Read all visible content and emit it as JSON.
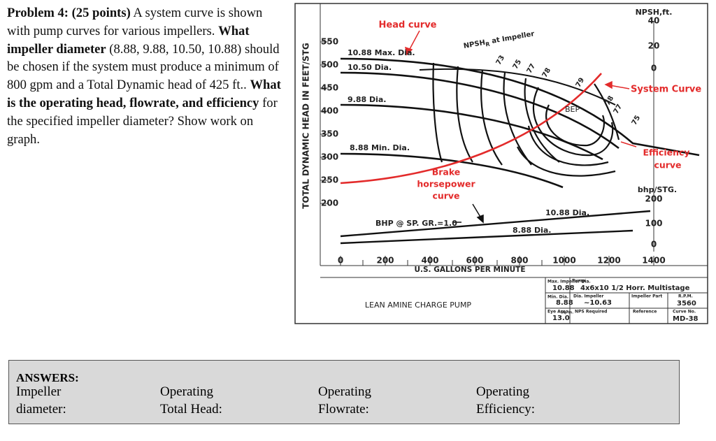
{
  "problem": {
    "segments": [
      {
        "text": "Problem 4: (25 points)",
        "bold": true
      },
      {
        "text": " A system curve is shown with pump curves for various impellers. ",
        "bold": false
      },
      {
        "text": "What impeller diameter",
        "bold": true
      },
      {
        "text": " (8.88, 9.88, 10.50, 10.88) should be chosen if the system must produce a minimum of 800 gpm and a Total Dynamic head of 425 ft.. ",
        "bold": false
      },
      {
        "text": "What is the operating head, flowrate, and efficiency",
        "bold": true
      },
      {
        "text": " for the specified impeller diameter?  Show work on graph.",
        "bold": false
      }
    ]
  },
  "figure": {
    "y_label": "TOTAL DYNAMIC HEAD IN FEET/STG",
    "y_ticks": [
      550,
      500,
      450,
      400,
      350,
      300,
      250,
      200
    ],
    "x_ticks": [
      0,
      200,
      400,
      600,
      800,
      1000,
      1200,
      1400
    ],
    "x_label": "U.S. GALLONS PER MINUTE",
    "npsh_label": "NPSH,ft.",
    "npsh_ticks": [
      40,
      20,
      0
    ],
    "bhp_label": "bhp/STG.",
    "bhp_ticks": [
      200,
      100,
      0
    ],
    "labels": {
      "head_curve": "Head curve",
      "npsh_r": [
        "NPSH",
        "R",
        " at Impeller"
      ],
      "dia_1088": "10.88 Max. Dia.",
      "dia_1050": "10.50 Dia.",
      "dia_988": "9.88 Dia.",
      "dia_888": "8.88 Min. Dia.",
      "bep": "BEP",
      "system_curve": "System Curve",
      "efficiency_curve": [
        "Efficiency",
        "curve"
      ],
      "brake_hp": [
        "Brake",
        "horsepower",
        "curve"
      ],
      "bhp_sg": "BHP @ SP. GR.=1.0",
      "bhp_1088": "10.88 Dia.",
      "bhp_888": "8.88 Dia."
    },
    "efficiency": [
      "73",
      "75",
      "77",
      "78",
      "79",
      "78",
      "77",
      "75"
    ],
    "title_block": {
      "pump_name": "LEAN AMINE CHARGE PUMP",
      "max_dia_label": "Max. Impeller Dia.",
      "max_dia": "10.88",
      "min_dia_label": "Min. Dia.",
      "min_dia": "8.88",
      "eye_label": "Eye Area",
      "eye": "13.0",
      "eye_unit": "Sq. In.",
      "pump_label": "Pump",
      "pump": "4x6x10 1/2 Horr. Multistage",
      "dia_imp_label": "Dia. Impeller",
      "dia_imp": "~10.63",
      "part_label": "Impeller Part",
      "rpm_label": "R.P.M.",
      "rpm": "3560",
      "nps_label": "NPS Required",
      "ref_label": "Reference",
      "curve_label": "Curve No.",
      "curve": "MD-38"
    }
  },
  "answers": {
    "title": "ANSWERS:",
    "columns": [
      [
        "Impeller",
        "diameter:"
      ],
      [
        "Operating",
        "Total Head:"
      ],
      [
        "Operating",
        "Flowrate:"
      ],
      [
        "Operating",
        "Efficiency:"
      ]
    ]
  }
}
